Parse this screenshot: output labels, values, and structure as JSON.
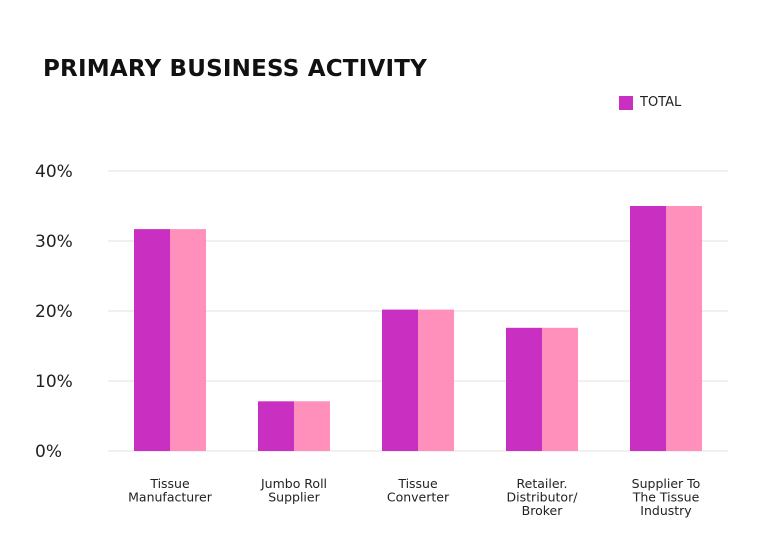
{
  "chart_data": {
    "type": "bar",
    "title": "PRIMARY BUSINESS ACTIVITY",
    "categories": [
      [
        "Tissue",
        "Manufacturer"
      ],
      [
        "Jumbo Roll",
        "Supplier"
      ],
      [
        "Tissue",
        "Converter"
      ],
      [
        "Retailer.",
        "Distributor/",
        "Broker"
      ],
      [
        "Supplier To",
        "The Tissue",
        "Industry"
      ]
    ],
    "series": [
      {
        "name": "TOTAL",
        "color": "#C930C2",
        "values": [
          31.7,
          7.1,
          20.2,
          17.6,
          35.0
        ]
      },
      {
        "color": "#FF8FBB",
        "values": [
          31.7,
          7.1,
          20.2,
          17.6,
          35.0
        ]
      }
    ],
    "yticks": [
      "0%",
      "10%",
      "20%",
      "30%",
      "40%"
    ],
    "ylim": [
      0,
      40
    ],
    "grid": true,
    "legend": "top-right",
    "xlabel": "",
    "ylabel": ""
  }
}
